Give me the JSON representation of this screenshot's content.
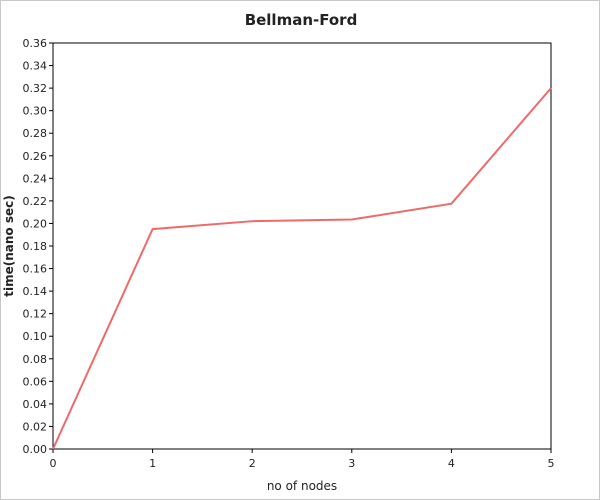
{
  "chart_data": {
    "type": "line",
    "title": "Bellman-Ford",
    "xlabel": "no of nodes",
    "ylabel": "time(nano sec)",
    "x": [
      0,
      1,
      2,
      3,
      4,
      5
    ],
    "series": [
      {
        "values": [
          0.0,
          0.195,
          0.202,
          0.2035,
          0.2175,
          0.32
        ]
      }
    ],
    "x_ticks": [
      "0",
      "1",
      "2",
      "3",
      "4",
      "5"
    ],
    "y_ticks": [
      "0.00",
      "0.02",
      "0.04",
      "0.06",
      "0.08",
      "0.10",
      "0.12",
      "0.14",
      "0.16",
      "0.18",
      "0.20",
      "0.22",
      "0.24",
      "0.26",
      "0.28",
      "0.30",
      "0.32",
      "0.34",
      "0.36"
    ],
    "xlim": [
      0,
      5
    ],
    "ylim": [
      0,
      0.36
    ],
    "grid": false,
    "line_color": "#ee6a6a"
  }
}
